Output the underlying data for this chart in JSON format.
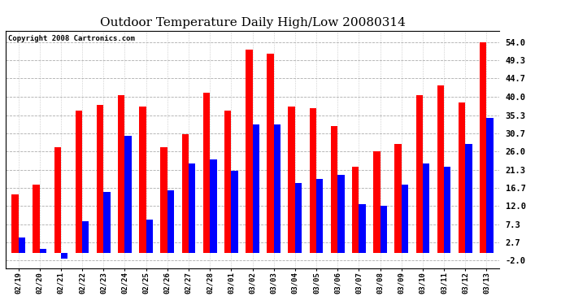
{
  "title": "Outdoor Temperature Daily High/Low 20080314",
  "copyright": "Copyright 2008 Cartronics.com",
  "dates": [
    "02/19",
    "02/20",
    "02/21",
    "02/22",
    "02/23",
    "02/24",
    "02/25",
    "02/26",
    "02/27",
    "02/28",
    "03/01",
    "03/02",
    "03/03",
    "03/04",
    "03/05",
    "03/06",
    "03/07",
    "03/08",
    "03/09",
    "03/10",
    "03/11",
    "03/12",
    "03/13"
  ],
  "highs": [
    15.0,
    17.5,
    27.0,
    36.5,
    38.0,
    40.5,
    37.5,
    27.0,
    30.5,
    41.0,
    36.5,
    52.0,
    51.0,
    37.5,
    37.0,
    32.5,
    22.0,
    26.0,
    28.0,
    40.5,
    43.0,
    38.5,
    54.0
  ],
  "lows": [
    4.0,
    1.0,
    -1.5,
    8.0,
    15.5,
    30.0,
    8.5,
    16.0,
    23.0,
    24.0,
    21.0,
    33.0,
    33.0,
    18.0,
    19.0,
    20.0,
    12.5,
    12.0,
    17.5,
    23.0,
    22.0,
    28.0,
    34.5
  ],
  "high_color": "#ff0000",
  "low_color": "#0000ff",
  "bg_color": "#ffffff",
  "grid_color": "#999999",
  "title_fontsize": 11,
  "copyright_fontsize": 6.5,
  "ylabel_right_ticks": [
    -2.0,
    2.7,
    7.3,
    12.0,
    16.7,
    21.3,
    26.0,
    30.7,
    35.3,
    40.0,
    44.7,
    49.3,
    54.0
  ],
  "ylim": [
    -4,
    57
  ],
  "bar_width": 0.32
}
